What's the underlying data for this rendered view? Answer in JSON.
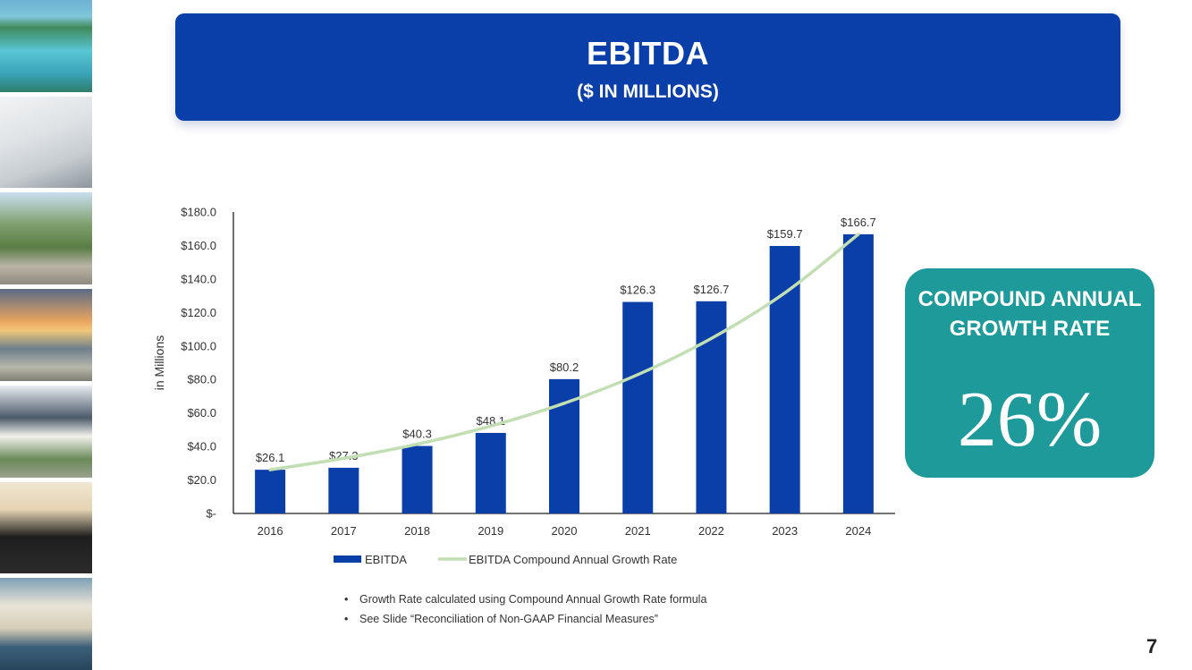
{
  "header": {
    "title": "EBITDA",
    "subtitle": "($ IN MILLIONS)"
  },
  "photo_strip": {
    "images": [
      "resort-pool",
      "living-room",
      "bicycle-riders",
      "beach-town-sunset",
      "house-scooter",
      "server-with-drinks",
      "beach-umbrella-chairs"
    ]
  },
  "chart_data": {
    "type": "bar",
    "title": "",
    "ylabel": "in Millions",
    "xlabel": "",
    "ylim": [
      0,
      180
    ],
    "yticks": [
      0,
      20,
      40,
      60,
      80,
      100,
      120,
      140,
      160,
      180
    ],
    "ytick_labels": [
      "$-",
      "$20.0",
      "$40.0",
      "$60.0",
      "$80.0",
      "$100.0",
      "$120.0",
      "$140.0",
      "$160.0",
      "$180.0"
    ],
    "categories": [
      "2016",
      "2017",
      "2018",
      "2019",
      "2020",
      "2021",
      "2022",
      "2023",
      "2024"
    ],
    "series": [
      {
        "name": "EBITDA",
        "kind": "bar",
        "color": "#0a3ea8",
        "values": [
          26.1,
          27.3,
          40.3,
          48.1,
          80.2,
          126.3,
          126.7,
          159.7,
          166.7
        ],
        "data_labels": [
          "$26.1",
          "$27.3",
          "$40.3",
          "$48.1",
          "$80.2",
          "$126.3",
          "$126.7",
          "$159.7",
          "$166.7"
        ]
      },
      {
        "name": "EBITDA Compound Annual Growth Rate",
        "kind": "line",
        "color": "#c2dfb4",
        "values": [
          26.1,
          32.9,
          41.4,
          52.2,
          65.8,
          82.9,
          104.5,
          131.7,
          166.7
        ]
      }
    ],
    "legend": "bottom",
    "grid": false
  },
  "cagr": {
    "label": "COMPOUND ANNUAL GROWTH RATE",
    "value": "26%",
    "color": "#1f9a9a"
  },
  "notes": [
    "Growth Rate calculated using Compound Annual Growth Rate formula",
    "See Slide “Reconciliation of Non-GAAP Financial Measures”"
  ],
  "page_number": "7"
}
